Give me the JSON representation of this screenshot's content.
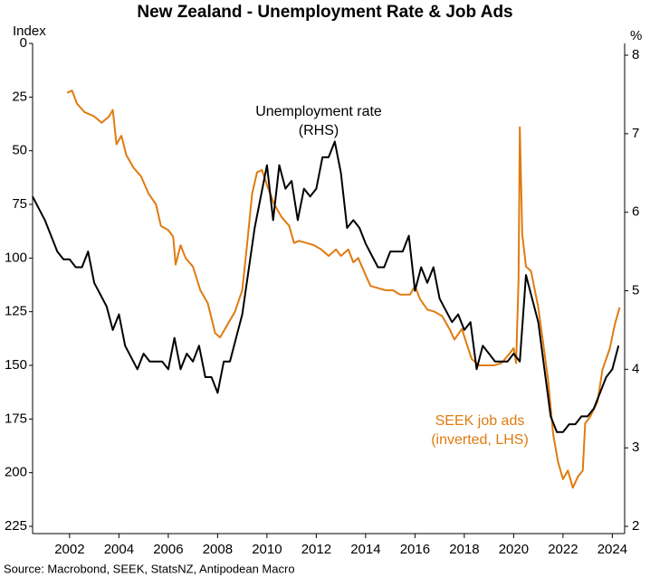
{
  "chart_data": {
    "type": "line",
    "title": "New Zealand - Unemployment Rate & Job Ads",
    "y_label": "Index",
    "y2_label": "%",
    "source": "Source: Macrobond, SEEK, StatsNZ, Antipodean Macro",
    "annotations": [
      {
        "lines": [
          "Unemployment rate",
          "(RHS)"
        ],
        "color": "#000000"
      },
      {
        "lines": [
          "SEEK job ads",
          "(inverted, LHS)"
        ],
        "color": "#e07b10"
      }
    ],
    "xlim": [
      2000.5,
      2024.5
    ],
    "xticks": [
      2002,
      2004,
      2006,
      2008,
      2010,
      2012,
      2014,
      2016,
      2018,
      2020,
      2022,
      2024
    ],
    "ylim": [
      225,
      0
    ],
    "yticks": [
      0,
      25,
      50,
      75,
      100,
      125,
      150,
      175,
      200,
      225
    ],
    "y_inverted": true,
    "y2lim": [
      2,
      8.15
    ],
    "y2ticks": [
      2,
      3,
      4,
      5,
      6,
      7,
      8
    ],
    "grid": false,
    "series": [
      {
        "color": "#e07b10",
        "axis": "y",
        "x": [
          2001.9,
          2002.1,
          2002.3,
          2002.6,
          2003.0,
          2003.3,
          2003.6,
          2003.75,
          2003.9,
          2004.1,
          2004.3,
          2004.6,
          2004.9,
          2005.2,
          2005.5,
          2005.7,
          2006.0,
          2006.2,
          2006.3,
          2006.5,
          2006.7,
          2007.0,
          2007.3,
          2007.6,
          2007.9,
          2008.1,
          2008.4,
          2008.7,
          2009.0,
          2009.2,
          2009.4,
          2009.6,
          2009.8,
          2010.0,
          2010.3,
          2010.6,
          2010.9,
          2011.1,
          2011.3,
          2011.6,
          2011.9,
          2012.2,
          2012.5,
          2012.8,
          2013.0,
          2013.3,
          2013.5,
          2013.7,
          2014.0,
          2014.2,
          2014.5,
          2014.8,
          2015.1,
          2015.4,
          2015.8,
          2016.0,
          2016.2,
          2016.5,
          2016.8,
          2017.1,
          2017.4,
          2017.6,
          2017.9,
          2018.1,
          2018.3,
          2018.6,
          2018.9,
          2019.2,
          2019.5,
          2019.8,
          2020.0,
          2020.1,
          2020.2,
          2020.25,
          2020.35,
          2020.5,
          2020.7,
          2021.0,
          2021.2,
          2021.4,
          2021.6,
          2021.8,
          2022.0,
          2022.2,
          2022.4,
          2022.6,
          2022.8,
          2022.9,
          2023.1,
          2023.4,
          2023.6,
          2023.9,
          2024.1,
          2024.3
        ],
        "values": [
          23,
          22,
          28,
          32,
          34,
          37,
          34,
          31,
          47,
          43,
          52,
          58,
          62,
          70,
          75,
          85,
          87,
          90,
          103,
          94,
          100,
          104,
          115,
          121,
          135,
          137,
          131,
          125,
          115,
          93,
          70,
          60,
          59,
          66,
          75,
          81,
          85,
          93,
          92,
          93,
          94,
          96,
          99,
          96,
          99,
          96,
          102,
          100,
          108,
          113,
          114,
          115,
          115,
          117,
          117,
          113,
          119,
          124,
          125,
          127,
          133,
          138,
          133,
          140,
          147,
          150,
          150,
          150,
          149,
          145,
          142,
          149,
          110,
          39,
          89,
          104,
          106,
          123,
          140,
          157,
          182,
          195,
          203,
          199,
          207,
          202,
          199,
          177,
          174,
          167,
          152,
          142,
          131,
          123
        ]
      },
      {
        "color": "#000000",
        "axis": "y2",
        "x": [
          2000.5,
          2001,
          2001.5,
          2001.75,
          2002,
          2002.25,
          2002.5,
          2002.75,
          2003,
          2003.5,
          2003.75,
          2004,
          2004.25,
          2004.75,
          2005,
          2005.25,
          2005.75,
          2006,
          2006.25,
          2006.5,
          2006.75,
          2007,
          2007.25,
          2007.5,
          2007.75,
          2008,
          2008.25,
          2008.5,
          2008.75,
          2009,
          2009.5,
          2009.75,
          2010,
          2010.25,
          2010.5,
          2010.75,
          2011,
          2011.25,
          2011.5,
          2011.75,
          2012,
          2012.25,
          2012.5,
          2012.75,
          2013,
          2013.25,
          2013.5,
          2013.75,
          2014,
          2014.5,
          2014.75,
          2015,
          2015.5,
          2015.75,
          2016,
          2016.25,
          2016.5,
          2016.75,
          2017,
          2017.5,
          2017.75,
          2018,
          2018.25,
          2018.5,
          2018.75,
          2019,
          2019.25,
          2019.75,
          2020,
          2020.25,
          2020.5,
          2020.75,
          2021,
          2021.25,
          2021.5,
          2021.75,
          2022,
          2022.25,
          2022.5,
          2022.75,
          2023,
          2023.25,
          2023.5,
          2023.75,
          2024,
          2024.25
        ],
        "values": [
          6.2,
          5.9,
          5.5,
          5.4,
          5.4,
          5.3,
          5.3,
          5.5,
          5.1,
          4.8,
          4.5,
          4.7,
          4.3,
          4.0,
          4.2,
          4.1,
          4.1,
          4.0,
          4.4,
          4.0,
          4.2,
          4.1,
          4.3,
          3.9,
          3.9,
          3.7,
          4.1,
          4.1,
          4.4,
          4.7,
          5.8,
          6.2,
          6.6,
          5.9,
          6.6,
          6.3,
          6.4,
          5.9,
          6.3,
          6.2,
          6.3,
          6.7,
          6.7,
          6.9,
          6.5,
          5.8,
          5.9,
          5.8,
          5.6,
          5.3,
          5.3,
          5.5,
          5.5,
          5.7,
          5.0,
          5.3,
          5.1,
          5.3,
          4.9,
          4.6,
          4.7,
          4.5,
          4.6,
          4.0,
          4.3,
          4.2,
          4.1,
          4.1,
          4.2,
          4.1,
          5.2,
          4.9,
          4.6,
          4.0,
          3.4,
          3.2,
          3.2,
          3.3,
          3.3,
          3.4,
          3.4,
          3.5,
          3.7,
          3.9,
          4.0,
          4.3
        ]
      }
    ]
  }
}
